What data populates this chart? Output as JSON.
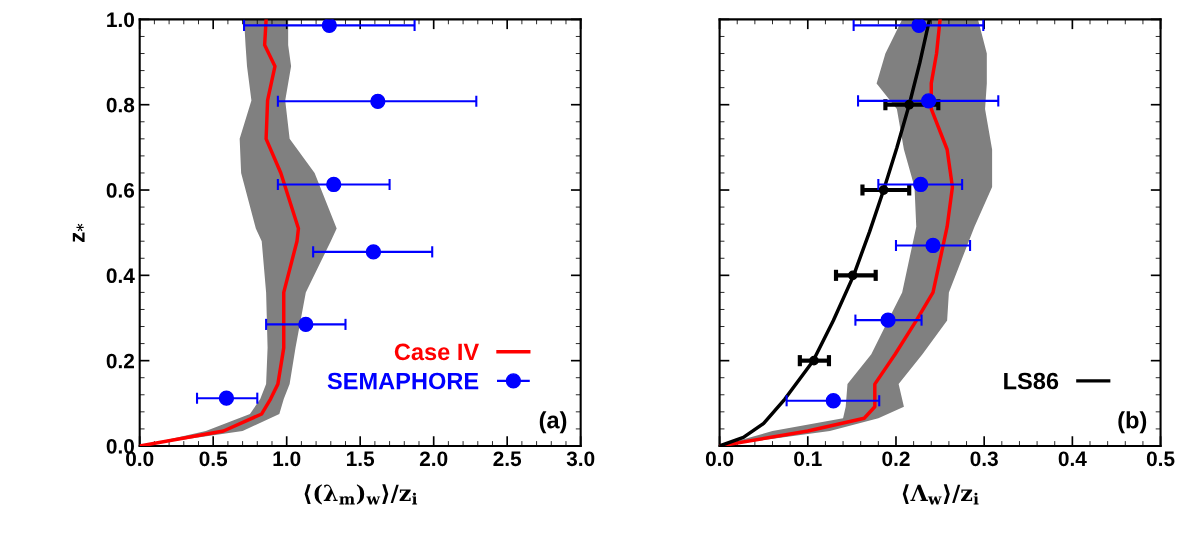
{
  "chart_data": [
    {
      "type": "line",
      "orientation": "horizontal",
      "xlabel": "⟨(λ$_{m}$)$_{w}$⟩/z$_{i}$",
      "ylabel": "z$_{*}$",
      "xlim": [
        0,
        3
      ],
      "xticks": [
        {
          "value": 0,
          "label": "0.0"
        },
        0.5,
        {
          "value": 1,
          "label": "1.0"
        },
        1.5,
        {
          "value": 2,
          "label": "2.0"
        },
        2.5,
        {
          "value": 3,
          "label": "3.0"
        }
      ],
      "ylim": [
        0,
        1
      ],
      "yticks": [
        {
          "value": 0,
          "label": "0.0"
        },
        0.2,
        0.4,
        0.6,
        0.8,
        {
          "value": 1,
          "label": "1.0"
        }
      ],
      "legend": "bottom right",
      "annotations": [
        "(a)"
      ],
      "series": [
        {
          "name": "Case IV",
          "color": "#ff0000",
          "x": [
            0,
            0.035,
            0.075,
            0.11,
            0.145,
            0.23,
            0.36,
            0.48,
            0.51,
            0.64,
            0.72,
            0.81,
            0.89,
            0.94,
            1.0
          ],
          "values": [
            0,
            0.57,
            0.83,
            0.89,
            0.94,
            0.98,
            0.98,
            1.07,
            1.08,
            0.96,
            0.86,
            0.87,
            0.92,
            0.85,
            0.86
          ],
          "lower": [
            0,
            0.45,
            0.75,
            0.82,
            0.86,
            0.87,
            0.86,
            0.83,
            0.79,
            0.69,
            0.68,
            0.76,
            0.73,
            0.72,
            0.71
          ],
          "upper": [
            0,
            0.7,
            0.95,
            0.98,
            1.02,
            1.06,
            1.13,
            1.3,
            1.34,
            1.19,
            1.02,
            0.99,
            1.03,
            1.01,
            1.01
          ]
        },
        {
          "name": "SEMAPHORE",
          "type": "scatter",
          "color": "#0000ff",
          "marker": "circle",
          "x": [
            0.986,
            0.808,
            0.613,
            0.455,
            0.285,
            0.112
          ],
          "values": [
            1.29,
            1.62,
            1.32,
            1.59,
            1.13,
            0.59
          ],
          "errors": [
            [
              0.71,
              1.87
            ],
            [
              0.94,
              2.29
            ],
            [
              0.94,
              1.7
            ],
            [
              1.18,
              1.99
            ],
            [
              0.86,
              1.4
            ],
            [
              0.39,
              0.8
            ]
          ]
        }
      ]
    },
    {
      "type": "line",
      "orientation": "horizontal",
      "xlabel": "⟨Λ$_{w}$⟩/z$_{i}$",
      "xlim": [
        0,
        0.5
      ],
      "xticks": [
        {
          "value": 0,
          "label": "0.0"
        },
        0.1,
        0.2,
        0.3,
        0.4,
        0.5
      ],
      "ylim": [
        0,
        1
      ],
      "yticks": [
        {
          "value": 0,
          "label": null
        },
        {
          "value": 0.2,
          "label": null
        },
        {
          "value": 0.4,
          "label": null
        },
        {
          "value": 0.6,
          "label": null
        },
        {
          "value": 0.8,
          "label": null
        },
        {
          "value": 1,
          "label": null
        }
      ],
      "tick_labels": "x",
      "legend": "bottom right",
      "annotations": [
        "(b)"
      ],
      "series": [
        {
          "color": "#ff0000",
          "x": [
            0,
            0.035,
            0.065,
            0.092,
            0.145,
            0.215,
            0.294,
            0.36,
            0.514,
            0.607,
            0.695,
            0.79,
            0.85,
            0.92,
            1.0
          ],
          "values": [
            0,
            0.1,
            0.164,
            0.176,
            0.176,
            0.199,
            0.223,
            0.242,
            0.258,
            0.264,
            0.258,
            0.24,
            0.24,
            0.246,
            0.25
          ],
          "lower": [
            0,
            0.06,
            0.14,
            0.143,
            0.145,
            0.172,
            0.191,
            0.207,
            0.223,
            0.221,
            0.209,
            0.201,
            0.178,
            0.188,
            0.207
          ],
          "upper": [
            0,
            0.125,
            0.18,
            0.209,
            0.203,
            0.23,
            0.258,
            0.26,
            0.289,
            0.309,
            0.309,
            0.301,
            0.303,
            0.303,
            0.293
          ]
        },
        {
          "name": "LS86",
          "color": "#000000",
          "x": [
            0,
            0.02,
            0.053,
            0.11,
            0.199,
            0.294,
            0.4,
            0.502,
            0.6,
            0.699,
            0.8,
            0.898,
            1.0
          ],
          "values": [
            0,
            0.027,
            0.05,
            0.074,
            0.106,
            0.129,
            0.152,
            0.17,
            0.186,
            0.201,
            0.215,
            0.227,
            0.238
          ]
        },
        {
          "type": "scatter",
          "color": "#000000",
          "marker": "circle",
          "x": [
            0.2,
            0.4,
            0.6,
            0.8
          ],
          "values": [
            0.107,
            0.151,
            0.186,
            0.215
          ],
          "errors": [
            [
              0.091,
              0.124
            ],
            [
              0.132,
              0.177
            ],
            [
              0.162,
              0.215
            ],
            [
              0.188,
              0.248
            ]
          ]
        },
        {
          "type": "scatter",
          "color": "#0000ff",
          "marker": "circle",
          "x": [
            0.986,
            0.809,
            0.613,
            0.47,
            0.295,
            0.106
          ],
          "values": [
            0.226,
            0.237,
            0.228,
            0.242,
            0.191,
            0.129
          ],
          "errors": [
            [
              0.152,
              0.299
            ],
            [
              0.157,
              0.316
            ],
            [
              0.18,
              0.275
            ],
            [
              0.2,
              0.284
            ],
            [
              0.154,
              0.229
            ],
            [
              0.076,
              0.181
            ]
          ]
        }
      ]
    }
  ]
}
